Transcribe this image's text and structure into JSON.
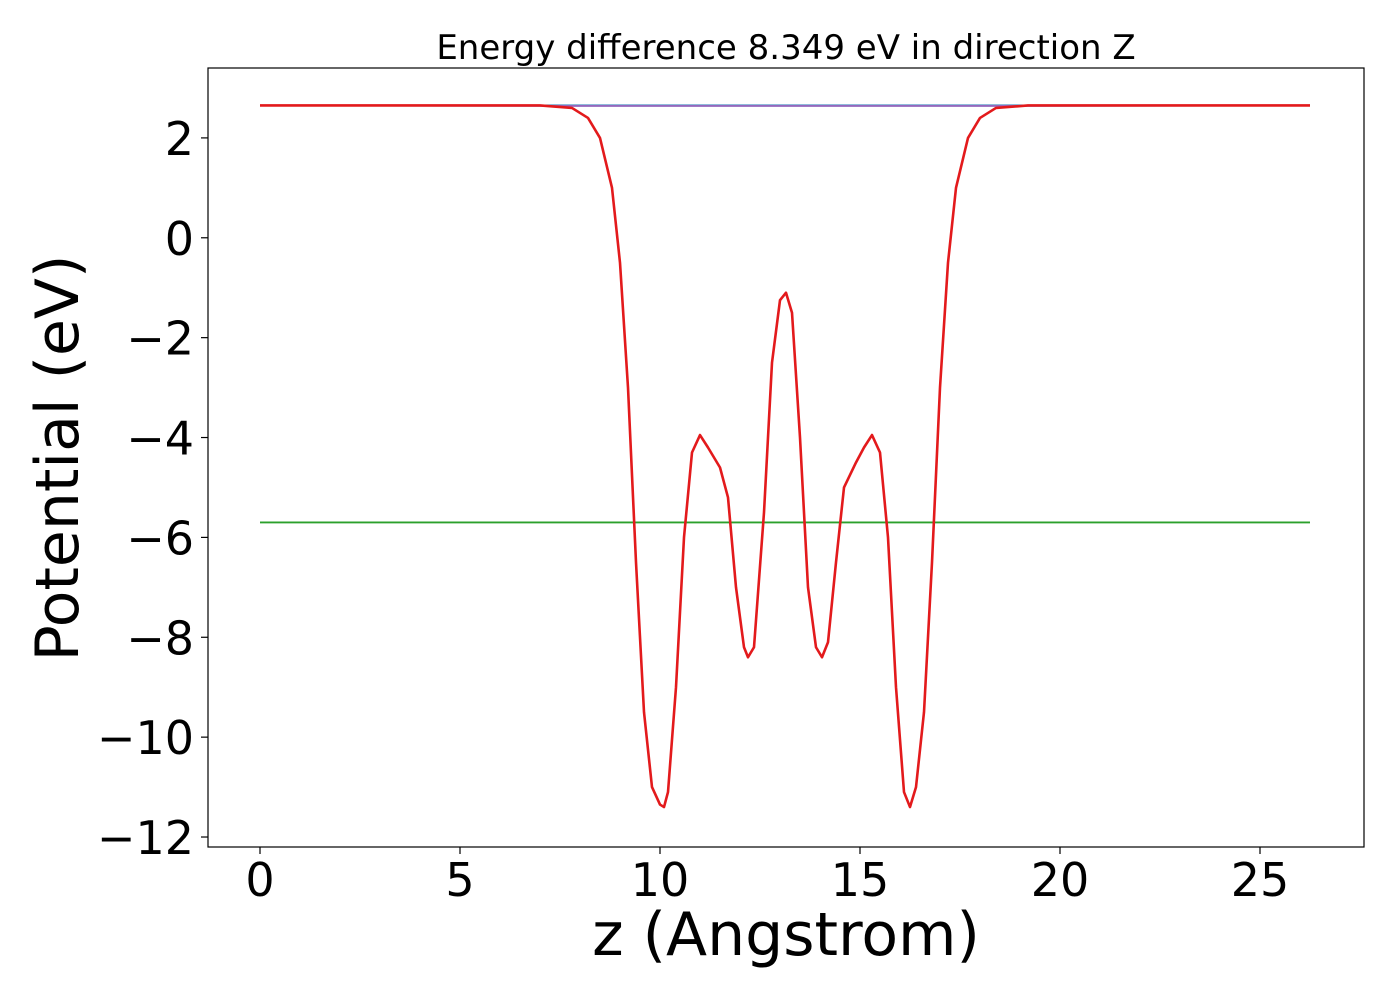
{
  "chart_data": {
    "type": "line",
    "title": "Energy difference 8.349 eV in direction Z",
    "xlabel": "z (Angstrom)",
    "ylabel": "Potential (eV)",
    "xlim": [
      -1.3,
      27.6
    ],
    "ylim": [
      -12.2,
      3.4
    ],
    "xticks": [
      0,
      5,
      10,
      15,
      20,
      25
    ],
    "yticks": [
      2,
      0,
      -2,
      -4,
      -6,
      -8,
      -10,
      -12
    ],
    "grid": false,
    "legend": "none",
    "series": [
      {
        "color": "#1f77b4",
        "x": [
          0,
          26.25
        ],
        "y": [
          2.65,
          2.65
        ]
      },
      {
        "color": "#2ca02c",
        "x": [
          0,
          26.25
        ],
        "y": [
          -5.7,
          -5.7
        ]
      },
      {
        "color": "#9467bd",
        "x": [
          0,
          7.5,
          18.8,
          26.25
        ],
        "y": [
          2.65,
          2.64,
          2.64,
          2.65
        ]
      },
      {
        "color": "#e31a1c",
        "x": [
          0,
          7.0,
          7.8,
          8.2,
          8.5,
          8.8,
          9.0,
          9.2,
          9.4,
          9.6,
          9.8,
          10.0,
          10.1,
          10.2,
          10.4,
          10.6,
          10.8,
          11.0,
          11.2,
          11.5,
          11.7,
          11.9,
          12.1,
          12.2,
          12.35,
          12.6,
          12.8,
          13.0,
          13.15,
          13.3,
          13.5,
          13.7,
          13.9,
          14.05,
          14.2,
          14.4,
          14.6,
          14.9,
          15.1,
          15.3,
          15.5,
          15.7,
          15.9,
          16.1,
          16.25,
          16.4,
          16.6,
          16.8,
          17.0,
          17.2,
          17.4,
          17.7,
          18.0,
          18.4,
          19.2,
          26.25
        ],
        "y": [
          2.65,
          2.65,
          2.6,
          2.4,
          2.0,
          1.0,
          -0.5,
          -3.0,
          -6.5,
          -9.5,
          -11.0,
          -11.35,
          -11.4,
          -11.1,
          -9.0,
          -6.0,
          -4.3,
          -3.95,
          -4.2,
          -4.6,
          -5.2,
          -7.0,
          -8.2,
          -8.4,
          -8.2,
          -5.5,
          -2.5,
          -1.25,
          -1.1,
          -1.5,
          -4.0,
          -7.0,
          -8.2,
          -8.4,
          -8.1,
          -6.5,
          -5.0,
          -4.5,
          -4.2,
          -3.95,
          -4.3,
          -6.0,
          -9.0,
          -11.1,
          -11.4,
          -11.0,
          -9.5,
          -6.5,
          -3.0,
          -0.5,
          1.0,
          2.0,
          2.4,
          2.6,
          2.65,
          2.65
        ]
      }
    ]
  }
}
